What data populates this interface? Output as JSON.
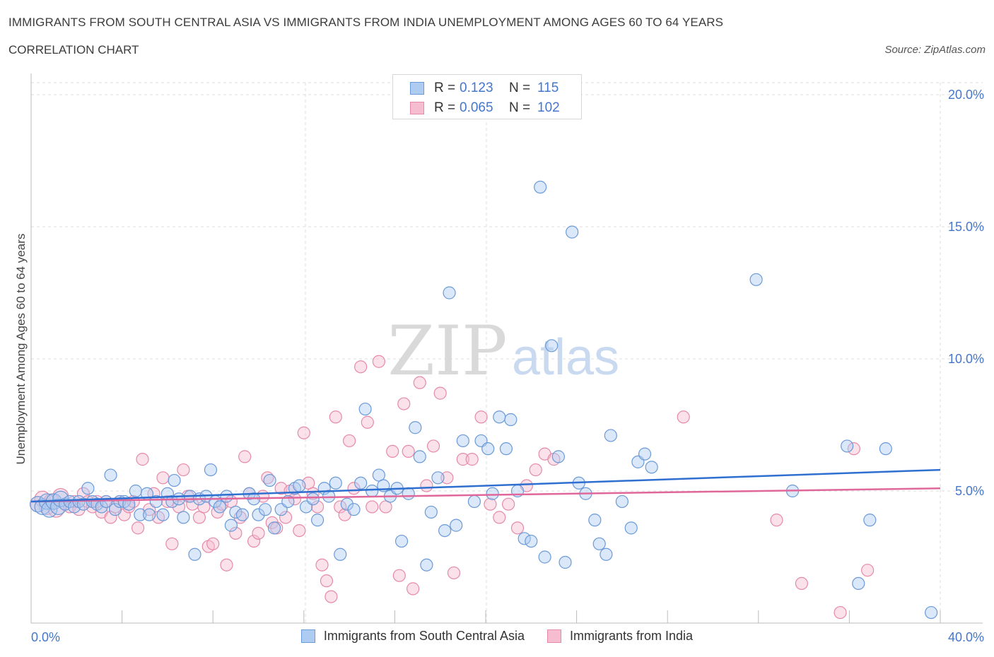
{
  "header": {
    "title": "IMMIGRANTS FROM SOUTH CENTRAL ASIA VS IMMIGRANTS FROM INDIA UNEMPLOYMENT AMONG AGES 60 TO 64 YEARS",
    "subtitle": "CORRELATION CHART",
    "source": "Source: ZipAtlas.com"
  },
  "colors": {
    "blue_fill": "#aecbf2",
    "blue_stroke": "#6b9ad8",
    "blue_line": "#2f6fd0",
    "pink_fill": "#f6bcd0",
    "pink_stroke": "#e58aaa",
    "pink_line": "#e0679a",
    "axis_text": "#4477cc",
    "grid": "#dddddd"
  },
  "legend": {
    "r_label": "R =",
    "n_label": "N =",
    "series1": {
      "r": "0.123",
      "n": "115"
    },
    "series2": {
      "r": "0.065",
      "n": "102"
    }
  },
  "watermark": {
    "zip": "ZIP",
    "atlas": "atlas"
  },
  "chart_data": {
    "type": "scatter",
    "title": "IMMIGRANTS FROM SOUTH CENTRAL ASIA VS IMMIGRANTS FROM INDIA UNEMPLOYMENT AMONG AGES 60 TO 64 YEARS",
    "xlabel": "",
    "ylabel": "Unemployment Among Ages 60 to 64 years",
    "xlim": [
      0,
      40
    ],
    "ylim": [
      0,
      20
    ],
    "x_tick_labels": [
      "0.0%",
      "40.0%"
    ],
    "y_ticks": [
      5,
      10,
      15,
      20
    ],
    "y_tick_labels": [
      "5.0%",
      "10.0%",
      "15.0%",
      "20.0%"
    ],
    "grid": true,
    "legend_position": "top-center",
    "series": [
      {
        "name": "Immigrants from South Central Asia",
        "color": "blue",
        "r": 0.123,
        "n": 115,
        "trend": {
          "x": [
            0,
            40
          ],
          "y": [
            4.6,
            5.8
          ]
        },
        "points": [
          [
            0.3,
            4.5
          ],
          [
            0.5,
            4.4
          ],
          [
            0.7,
            4.6
          ],
          [
            0.8,
            4.3
          ],
          [
            1.0,
            4.6
          ],
          [
            1.2,
            4.4
          ],
          [
            1.3,
            4.7
          ],
          [
            1.5,
            4.5
          ],
          [
            1.7,
            4.6
          ],
          [
            1.9,
            4.4
          ],
          [
            2.1,
            4.6
          ],
          [
            2.3,
            4.5
          ],
          [
            2.5,
            5.1
          ],
          [
            2.7,
            4.6
          ],
          [
            2.9,
            4.5
          ],
          [
            3.1,
            4.4
          ],
          [
            3.3,
            4.6
          ],
          [
            3.5,
            5.6
          ],
          [
            3.7,
            4.3
          ],
          [
            3.9,
            4.6
          ],
          [
            4.1,
            4.6
          ],
          [
            4.3,
            4.5
          ],
          [
            4.6,
            5.0
          ],
          [
            4.8,
            4.1
          ],
          [
            5.1,
            4.9
          ],
          [
            5.2,
            4.1
          ],
          [
            5.5,
            4.6
          ],
          [
            5.8,
            4.1
          ],
          [
            6.0,
            4.9
          ],
          [
            6.2,
            4.6
          ],
          [
            6.3,
            5.4
          ],
          [
            6.5,
            4.7
          ],
          [
            6.7,
            4.0
          ],
          [
            7.0,
            4.8
          ],
          [
            7.2,
            2.6
          ],
          [
            7.4,
            4.7
          ],
          [
            7.7,
            4.8
          ],
          [
            7.9,
            5.8
          ],
          [
            8.1,
            4.6
          ],
          [
            8.3,
            4.4
          ],
          [
            8.6,
            4.8
          ],
          [
            8.8,
            3.7
          ],
          [
            9.0,
            4.2
          ],
          [
            9.3,
            4.1
          ],
          [
            9.6,
            4.9
          ],
          [
            9.8,
            4.7
          ],
          [
            10.0,
            4.1
          ],
          [
            10.3,
            4.3
          ],
          [
            10.5,
            5.4
          ],
          [
            10.7,
            3.6
          ],
          [
            11.0,
            4.3
          ],
          [
            11.3,
            4.6
          ],
          [
            11.6,
            5.1
          ],
          [
            11.8,
            5.2
          ],
          [
            12.1,
            4.4
          ],
          [
            12.4,
            4.7
          ],
          [
            12.6,
            3.9
          ],
          [
            12.9,
            5.1
          ],
          [
            13.1,
            4.8
          ],
          [
            13.4,
            5.3
          ],
          [
            13.6,
            2.6
          ],
          [
            13.9,
            4.5
          ],
          [
            14.2,
            4.3
          ],
          [
            14.5,
            5.3
          ],
          [
            14.7,
            8.1
          ],
          [
            15.0,
            5.0
          ],
          [
            15.3,
            5.6
          ],
          [
            15.5,
            5.2
          ],
          [
            15.8,
            4.8
          ],
          [
            16.1,
            5.1
          ],
          [
            16.3,
            3.1
          ],
          [
            16.6,
            4.9
          ],
          [
            16.9,
            7.4
          ],
          [
            17.1,
            6.3
          ],
          [
            17.4,
            2.2
          ],
          [
            17.6,
            4.2
          ],
          [
            17.9,
            5.5
          ],
          [
            18.2,
            3.5
          ],
          [
            18.4,
            12.5
          ],
          [
            18.7,
            3.7
          ],
          [
            19.0,
            6.9
          ],
          [
            19.5,
            4.6
          ],
          [
            19.8,
            6.9
          ],
          [
            20.1,
            6.6
          ],
          [
            20.3,
            4.9
          ],
          [
            20.6,
            7.8
          ],
          [
            20.9,
            6.6
          ],
          [
            21.1,
            7.7
          ],
          [
            21.4,
            5.0
          ],
          [
            21.7,
            3.2
          ],
          [
            22.0,
            3.1
          ],
          [
            22.4,
            16.5
          ],
          [
            22.6,
            2.5
          ],
          [
            22.9,
            10.5
          ],
          [
            23.2,
            6.3
          ],
          [
            23.5,
            2.3
          ],
          [
            23.8,
            14.8
          ],
          [
            24.1,
            5.3
          ],
          [
            24.4,
            4.9
          ],
          [
            24.8,
            3.9
          ],
          [
            25.0,
            3.0
          ],
          [
            25.3,
            2.6
          ],
          [
            25.5,
            7.1
          ],
          [
            26.0,
            4.6
          ],
          [
            26.4,
            3.6
          ],
          [
            26.7,
            6.1
          ],
          [
            27.0,
            6.4
          ],
          [
            27.3,
            5.9
          ],
          [
            31.9,
            13.0
          ],
          [
            33.5,
            5.0
          ],
          [
            35.9,
            6.7
          ],
          [
            36.4,
            1.5
          ],
          [
            36.9,
            3.9
          ],
          [
            37.6,
            6.6
          ],
          [
            39.6,
            0.4
          ]
        ]
      },
      {
        "name": "Immigrants from India",
        "color": "pink",
        "r": 0.065,
        "n": 102,
        "trend": {
          "x": [
            0,
            40
          ],
          "y": [
            4.6,
            5.1
          ]
        },
        "points": [
          [
            0.3,
            4.5
          ],
          [
            0.5,
            4.7
          ],
          [
            0.7,
            4.4
          ],
          [
            0.9,
            4.6
          ],
          [
            1.1,
            4.3
          ],
          [
            1.3,
            4.8
          ],
          [
            1.5,
            4.5
          ],
          [
            1.7,
            4.4
          ],
          [
            1.9,
            4.6
          ],
          [
            2.1,
            4.3
          ],
          [
            2.3,
            4.9
          ],
          [
            2.5,
            4.6
          ],
          [
            2.7,
            4.4
          ],
          [
            2.9,
            4.6
          ],
          [
            3.1,
            4.2
          ],
          [
            3.3,
            4.6
          ],
          [
            3.5,
            4.0
          ],
          [
            3.7,
            4.4
          ],
          [
            3.9,
            4.6
          ],
          [
            4.1,
            4.1
          ],
          [
            4.3,
            4.4
          ],
          [
            4.5,
            4.6
          ],
          [
            4.7,
            3.6
          ],
          [
            4.9,
            6.2
          ],
          [
            5.2,
            4.3
          ],
          [
            5.4,
            4.9
          ],
          [
            5.6,
            4.0
          ],
          [
            5.8,
            5.5
          ],
          [
            6.0,
            4.6
          ],
          [
            6.2,
            3.0
          ],
          [
            6.5,
            4.4
          ],
          [
            6.7,
            5.8
          ],
          [
            6.9,
            4.8
          ],
          [
            7.1,
            4.5
          ],
          [
            7.4,
            4.0
          ],
          [
            7.6,
            4.4
          ],
          [
            7.8,
            2.9
          ],
          [
            8.0,
            3.0
          ],
          [
            8.2,
            4.2
          ],
          [
            8.4,
            4.5
          ],
          [
            8.6,
            2.2
          ],
          [
            8.8,
            4.6
          ],
          [
            9.0,
            3.4
          ],
          [
            9.2,
            4.0
          ],
          [
            9.4,
            6.3
          ],
          [
            9.6,
            4.9
          ],
          [
            9.8,
            3.1
          ],
          [
            10.0,
            3.4
          ],
          [
            10.2,
            4.8
          ],
          [
            10.4,
            5.5
          ],
          [
            10.6,
            3.8
          ],
          [
            10.8,
            3.6
          ],
          [
            11.0,
            5.1
          ],
          [
            11.2,
            4.0
          ],
          [
            11.4,
            5.0
          ],
          [
            11.6,
            4.7
          ],
          [
            11.8,
            3.5
          ],
          [
            12.0,
            7.2
          ],
          [
            12.2,
            5.3
          ],
          [
            12.4,
            4.9
          ],
          [
            12.6,
            4.4
          ],
          [
            12.8,
            2.2
          ],
          [
            13.0,
            1.6
          ],
          [
            13.2,
            1.0
          ],
          [
            13.4,
            7.8
          ],
          [
            13.6,
            4.4
          ],
          [
            13.8,
            4.1
          ],
          [
            14.0,
            6.9
          ],
          [
            14.2,
            5.1
          ],
          [
            14.5,
            9.7
          ],
          [
            14.8,
            7.6
          ],
          [
            15.0,
            4.4
          ],
          [
            15.3,
            9.9
          ],
          [
            15.6,
            4.4
          ],
          [
            15.9,
            6.5
          ],
          [
            16.2,
            1.8
          ],
          [
            16.4,
            8.3
          ],
          [
            16.6,
            6.5
          ],
          [
            16.8,
            1.3
          ],
          [
            17.1,
            9.1
          ],
          [
            17.4,
            5.2
          ],
          [
            17.7,
            6.7
          ],
          [
            18.0,
            8.7
          ],
          [
            18.3,
            5.5
          ],
          [
            18.6,
            1.9
          ],
          [
            19.0,
            6.2
          ],
          [
            19.4,
            6.2
          ],
          [
            19.8,
            7.8
          ],
          [
            20.2,
            4.5
          ],
          [
            20.6,
            4.0
          ],
          [
            21.0,
            4.5
          ],
          [
            21.4,
            3.6
          ],
          [
            21.8,
            5.2
          ],
          [
            22.2,
            5.8
          ],
          [
            22.6,
            6.4
          ],
          [
            23.0,
            6.2
          ],
          [
            28.7,
            7.8
          ],
          [
            32.8,
            3.9
          ],
          [
            33.9,
            1.5
          ],
          [
            35.6,
            0.4
          ],
          [
            36.2,
            6.6
          ],
          [
            36.8,
            2.0
          ]
        ]
      }
    ]
  }
}
